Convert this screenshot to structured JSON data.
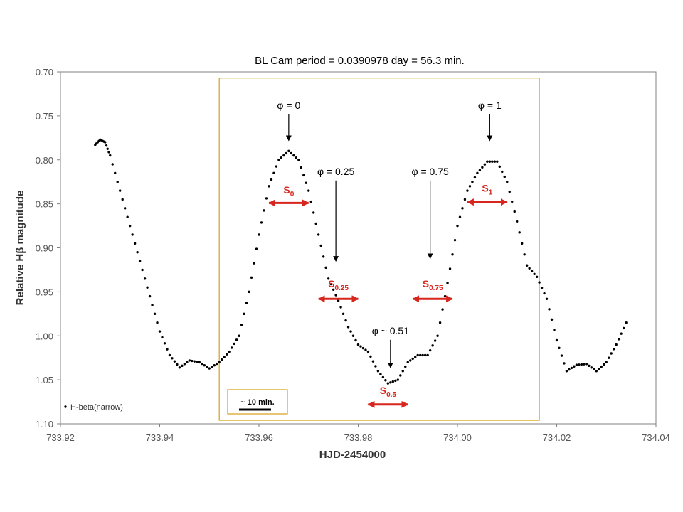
{
  "chart_data": {
    "type": "scatter",
    "title": "BL Cam period = 0.0390978 day = 56.3 min.",
    "xlabel": "HJD-2454000",
    "ylabel": "Relative Hβ magnitude",
    "xlim": [
      733.92,
      734.04
    ],
    "ylim": [
      0.7,
      1.1
    ],
    "y_inverted": true,
    "x_ticks": [
      "733.92",
      "733.94",
      "733.96",
      "733.98",
      "734.00",
      "734.02",
      "734.04"
    ],
    "y_ticks": [
      "0.70",
      "0.75",
      "0.80",
      "0.85",
      "0.90",
      "0.95",
      "1.00",
      "1.05",
      "1.10"
    ],
    "grid": false,
    "legend_position": "bottom-left",
    "colors": {
      "points": "#000000",
      "annotation": "#d7261e",
      "box": "#d4a017"
    },
    "series": [
      {
        "name": "H-beta(narrow)",
        "x": [
          733.927,
          733.928,
          733.929,
          733.93,
          733.932,
          733.934,
          733.936,
          733.938,
          733.94,
          733.942,
          733.944,
          733.946,
          733.948,
          733.95,
          733.952,
          733.954,
          733.956,
          733.958,
          733.96,
          733.962,
          733.964,
          733.966,
          733.968,
          733.97,
          733.972,
          733.974,
          733.976,
          733.978,
          733.98,
          733.982,
          733.984,
          733.986,
          733.988,
          733.99,
          733.992,
          733.994,
          733.996,
          733.998,
          734.0,
          734.002,
          734.004,
          734.006,
          734.008,
          734.01,
          734.012,
          734.014,
          734.016,
          734.018,
          734.02,
          734.022,
          734.024,
          734.026,
          734.028,
          734.03,
          734.032,
          734.034
        ],
        "y": [
          0.783,
          0.777,
          0.78,
          0.795,
          0.835,
          0.875,
          0.915,
          0.955,
          0.995,
          1.022,
          1.036,
          1.028,
          1.03,
          1.037,
          1.03,
          1.018,
          1.0,
          0.95,
          0.885,
          0.83,
          0.8,
          0.79,
          0.8,
          0.835,
          0.885,
          0.935,
          0.96,
          0.99,
          1.01,
          1.018,
          1.04,
          1.054,
          1.05,
          1.03,
          1.022,
          1.022,
          1.0,
          0.94,
          0.875,
          0.835,
          0.815,
          0.802,
          0.802,
          0.825,
          0.87,
          0.92,
          0.933,
          0.958,
          1.005,
          1.04,
          1.033,
          1.032,
          1.04,
          1.03,
          1.01,
          0.985
        ]
      }
    ],
    "phase_labels": [
      {
        "text": "φ = 0",
        "x": 733.966,
        "y_text": 0.742,
        "y_tip": 0.778
      },
      {
        "text": "φ = 0.25",
        "x": 733.9755,
        "y_text": 0.817,
        "y_tip": 0.915
      },
      {
        "text": "φ = 0.75",
        "x": 733.9945,
        "y_text": 0.817,
        "y_tip": 0.912
      },
      {
        "text": "φ = 1",
        "x": 734.0065,
        "y_text": 0.742,
        "y_tip": 0.778
      },
      {
        "text": "φ ~ 0.51",
        "x": 733.9865,
        "y_text": 0.998,
        "y_tip": 1.036
      }
    ],
    "segments": [
      {
        "label": "S",
        "sub": "0",
        "x1": 733.962,
        "x2": 733.97,
        "y": 0.849,
        "y_text": 0.838
      },
      {
        "label": "S",
        "sub": "0.25",
        "x1": 733.972,
        "x2": 733.98,
        "y": 0.958,
        "y_text": 0.945
      },
      {
        "label": "S",
        "sub": "0.5",
        "x1": 733.982,
        "x2": 733.99,
        "y": 1.078,
        "y_text": 1.066
      },
      {
        "label": "S",
        "sub": "0.75",
        "x1": 733.991,
        "x2": 733.999,
        "y": 0.958,
        "y_text": 0.945
      },
      {
        "label": "S",
        "sub": "1",
        "x1": 734.002,
        "x2": 734.01,
        "y": 0.848,
        "y_text": 0.836
      }
    ],
    "highlight_box": {
      "x1": 733.952,
      "x2": 734.0165,
      "y1": 0.707,
      "y2": 1.096
    },
    "scale_bar_label": "~ 10 min."
  }
}
